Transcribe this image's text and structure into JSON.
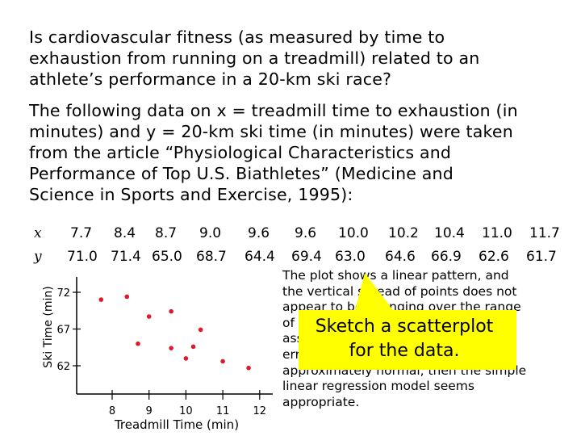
{
  "question": "Is cardiovascular fitness (as measured by time to\nexhaustion from running on a treadmill) related to an\nathlete’s performance in a 20-km ski race?",
  "intro": "The following data on x = treadmill time to exhaustion (in\nminutes) and y = 20-km ski time (in minutes) were taken\nfrom the article “Physiological Characteristics and\nPerformance of Top U.S. Biathletes” (Medicine and\nScience in Sports and Exercise, 1995):",
  "table": {
    "x_label": "x",
    "y_label": "y",
    "x_values": [
      "7.7",
      "8.4",
      "8.7",
      "9.0",
      "9.6",
      "9.6",
      "10.0",
      "10.2",
      "10.4",
      "11.0",
      "11.7"
    ],
    "y_values": [
      "71.0",
      "71.4",
      "65.0",
      "68.7",
      "64.4",
      "69.4",
      "63.0",
      "64.6",
      "66.9",
      "62.6",
      "61.7"
    ]
  },
  "chart_data": {
    "type": "scatter",
    "xlabel": "Treadmill Time (min)",
    "ylabel": "Ski Time (min)",
    "x_ticks": [
      "8",
      "9",
      "10",
      "11",
      "12"
    ],
    "y_ticks": [
      "72",
      "67",
      "62"
    ],
    "xlim": [
      7.5,
      12
    ],
    "ylim": [
      60,
      73
    ],
    "points": [
      {
        "x": 7.7,
        "y": 71.0
      },
      {
        "x": 8.4,
        "y": 71.4
      },
      {
        "x": 8.7,
        "y": 65.0
      },
      {
        "x": 9.0,
        "y": 68.7
      },
      {
        "x": 9.6,
        "y": 64.4
      },
      {
        "x": 9.6,
        "y": 69.4
      },
      {
        "x": 10.0,
        "y": 63.0
      },
      {
        "x": 10.2,
        "y": 64.6
      },
      {
        "x": 10.4,
        "y": 66.9
      },
      {
        "x": 11.0,
        "y": 62.6
      },
      {
        "x": 11.7,
        "y": 61.7
      }
    ],
    "marker_color": "#e0182c"
  },
  "explanation": "The plot shows a linear pattern, and\nthe vertical spread of points does not\nappear to be changing over the range\nof x values in the sample. If we\nassume that the distribution of the\nerrors at any given x value is\napproximately normal, then the simple\nlinear regression model seems\nappropriate.",
  "callout": {
    "text": "Sketch a scatterplot\nfor the data.",
    "fill": "#ffff00",
    "text_color": "#000000"
  }
}
